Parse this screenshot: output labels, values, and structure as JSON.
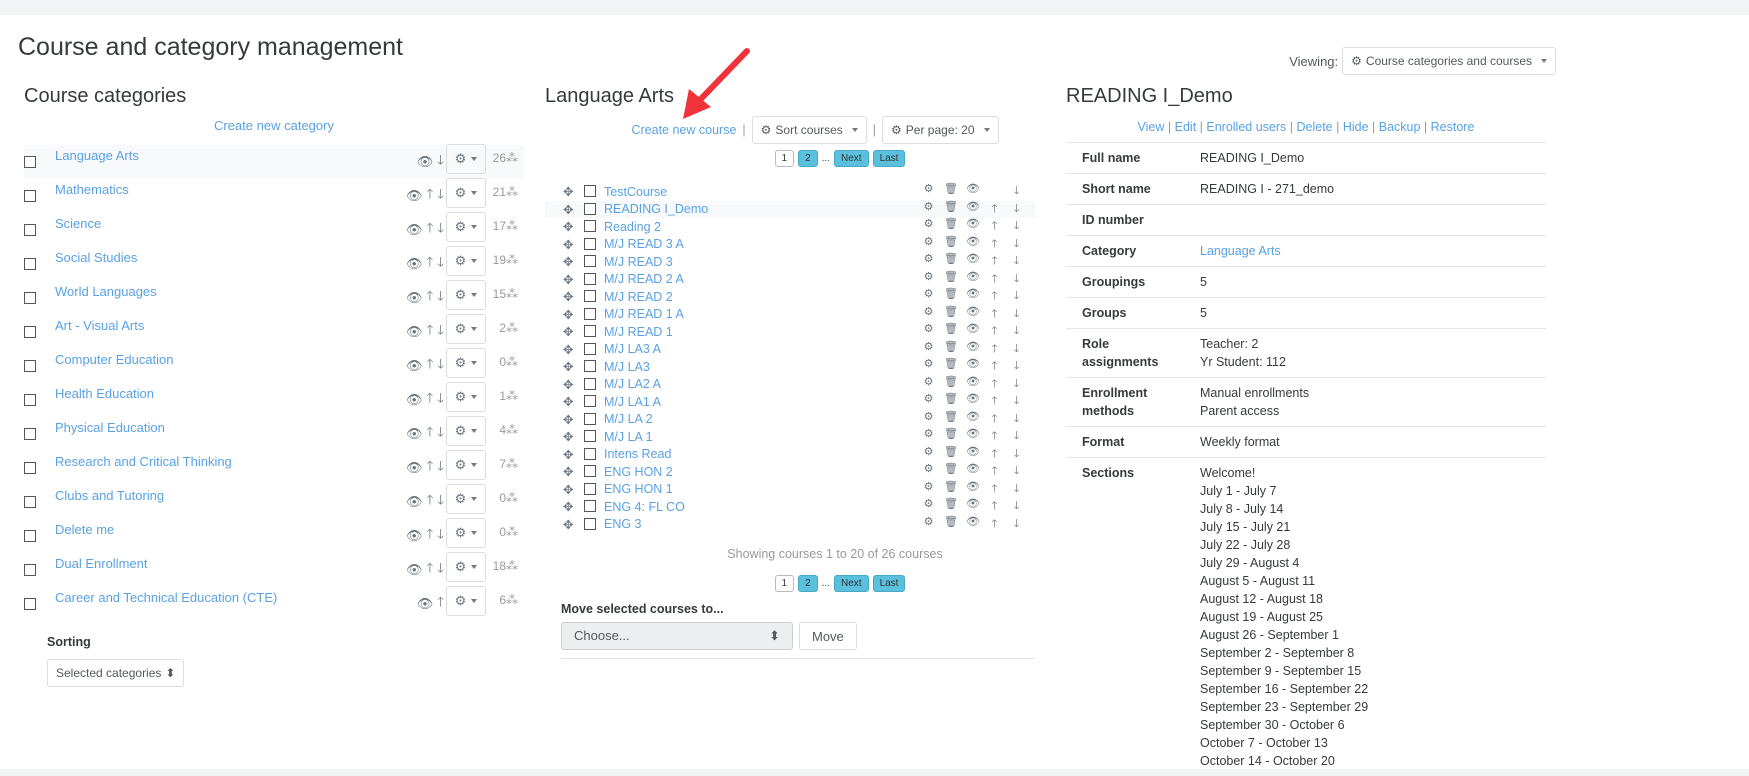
{
  "title": "Course and category management",
  "viewing": {
    "label": "Viewing:",
    "value": "Course categories and courses"
  },
  "categories": {
    "heading": "Course categories",
    "create": "Create new category",
    "items": [
      {
        "name": "Language Arts",
        "count": "26",
        "up": false,
        "down": true
      },
      {
        "name": "Mathematics",
        "count": "21",
        "up": true,
        "down": true
      },
      {
        "name": "Science",
        "count": "17",
        "up": true,
        "down": true
      },
      {
        "name": "Social Studies",
        "count": "19",
        "up": true,
        "down": true
      },
      {
        "name": "World Languages",
        "count": "15",
        "up": true,
        "down": true
      },
      {
        "name": "Art - Visual Arts",
        "count": "2",
        "up": true,
        "down": true
      },
      {
        "name": "Computer Education",
        "count": "0",
        "up": true,
        "down": true
      },
      {
        "name": "Health Education",
        "count": "1",
        "up": true,
        "down": true
      },
      {
        "name": "Physical Education",
        "count": "4",
        "up": true,
        "down": true
      },
      {
        "name": "Research and Critical Thinking",
        "count": "7",
        "up": true,
        "down": true
      },
      {
        "name": "Clubs and Tutoring",
        "count": "0",
        "up": true,
        "down": true
      },
      {
        "name": "Delete me",
        "count": "0",
        "up": true,
        "down": true
      },
      {
        "name": "Dual Enrollment",
        "count": "18",
        "up": true,
        "down": true
      },
      {
        "name": "Career and Technical Education (CTE)",
        "count": "6",
        "up": true,
        "down": false
      }
    ],
    "sorting_label": "Sorting",
    "sorting_value": "Selected categories"
  },
  "courses": {
    "heading": "Language Arts",
    "create": "Create new course",
    "sort": "Sort courses",
    "perpage": "Per page: 20",
    "pager": [
      "1",
      "2",
      "...",
      "Next",
      "Last"
    ],
    "items": [
      "TestCourse",
      "READING I_Demo",
      "Reading 2",
      "M/J READ 3 A",
      "M/J READ 3",
      "M/J READ 2 A",
      "M/J READ 2",
      "M/J READ 1 A",
      "M/J READ 1",
      "M/J LA3 A",
      "M/J LA3",
      "M/J LA2 A",
      "M/J LA1 A",
      "M/J LA 2",
      "M/J LA 1",
      "Intens Read",
      "ENG HON 2",
      "ENG HON 1",
      "ENG 4: FL CO",
      "ENG 3"
    ],
    "showing": "Showing courses 1 to 20 of 26 courses",
    "move_label": "Move selected courses to...",
    "move_choose": "Choose...",
    "move_button": "Move"
  },
  "detail": {
    "heading": "READING I_Demo",
    "actions": [
      "View",
      "Edit",
      "Enrolled users",
      "Delete",
      "Hide",
      "Backup",
      "Restore"
    ],
    "rows": [
      {
        "k": "Full name",
        "v": [
          "READING I_Demo"
        ]
      },
      {
        "k": "Short name",
        "v": [
          "READING I - 271_demo"
        ]
      },
      {
        "k": "ID number",
        "v": []
      },
      {
        "k": "Category",
        "v": [
          "Language Arts"
        ],
        "link": true
      },
      {
        "k": "Groupings",
        "v": [
          "5"
        ]
      },
      {
        "k": "Groups",
        "v": [
          "5"
        ]
      },
      {
        "k": "Role assignments",
        "v": [
          "Teacher: 2",
          "Yr Student: 112"
        ]
      },
      {
        "k": "Enrollment methods",
        "v": [
          "Manual enrollments",
          "Parent access"
        ]
      },
      {
        "k": "Format",
        "v": [
          "Weekly format"
        ]
      },
      {
        "k": "Sections",
        "v": [
          "Welcome!",
          "July 1 - July 7",
          "July 8 - July 14",
          "July 15 - July 21",
          "July 22 - July 28",
          "July 29 - August 4",
          "August 5 - August 11",
          "August 12 - August 18",
          "August 19 - August 25",
          "August 26 - September 1",
          "September 2 - September 8",
          "September 9 - September 15",
          "September 16 - September 22",
          "September 23 - September 29",
          "September 30 - October 6",
          "October 7 - October 13",
          "October 14 - October 20"
        ]
      }
    ]
  },
  "accent": "#5aa1e3",
  "arrow_color": "#f0333a"
}
